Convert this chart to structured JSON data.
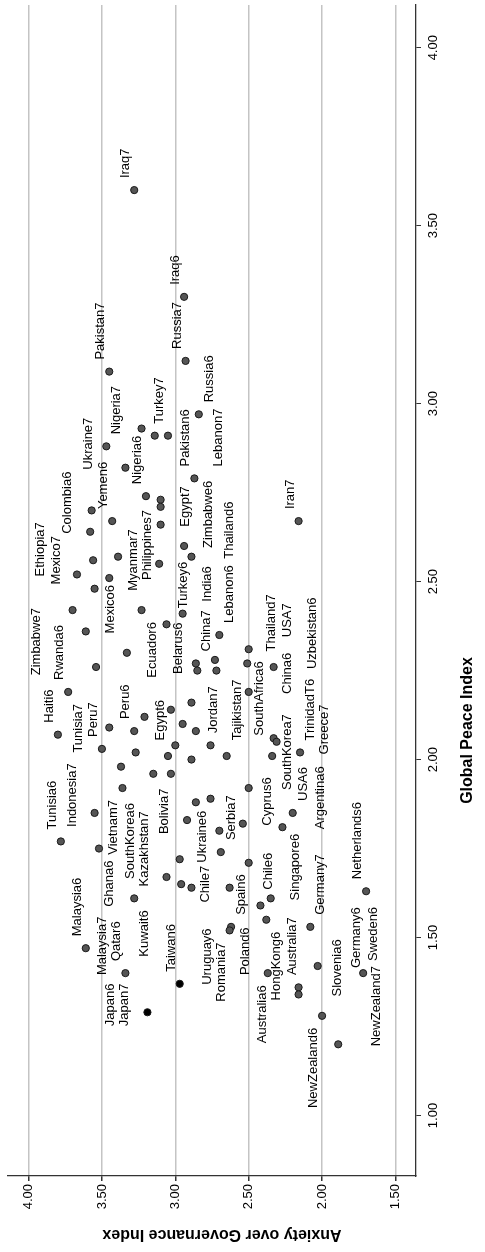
{
  "chart_data": {
    "type": "scatter",
    "xlabel": "Anxiety over Governance Index",
    "ylabel": "Global Peace Index",
    "xlim": [
      4.14,
      1.36
    ],
    "ylim": [
      0.83,
      4.12
    ],
    "xticks": [
      {
        "value": 4,
        "label": "4.00"
      },
      {
        "value": 3.5,
        "label": "3.50"
      },
      {
        "value": 3,
        "label": "3.00"
      },
      {
        "value": 2.5,
        "label": "2.50"
      },
      {
        "value": 2,
        "label": "2.00"
      },
      {
        "value": 1.5,
        "label": "1.50"
      }
    ],
    "yticks": [
      {
        "value": 1,
        "label": "1.00"
      },
      {
        "value": 1.5,
        "label": "1.50"
      },
      {
        "value": 2,
        "label": "2.00"
      },
      {
        "value": 2.5,
        "label": "2.50"
      },
      {
        "value": 3,
        "label": "3.00"
      },
      {
        "value": 3.5,
        "label": "3.50"
      },
      {
        "value": 4,
        "label": "4.00"
      }
    ],
    "grid": "x",
    "marker": "circle",
    "series": [
      {
        "color": "#555555",
        "x": [
          3.28,
          2.94,
          3.45,
          2.93,
          2.84,
          3.23,
          3.14,
          3.05,
          3.47,
          3.34,
          2.87,
          3.57,
          3.43,
          3.2,
          3.1,
          3.1,
          3.58,
          3.1,
          2.16,
          3.67,
          3.56,
          3.39,
          2.94,
          2.89,
          3.55,
          3.45,
          3.7,
          3.23,
          2.95,
          3.11,
          3.61,
          3.06,
          3.33,
          2.7,
          2.5,
          3.54,
          2.86,
          2.85,
          2.73,
          2.72,
          2.51,
          2.33,
          3.73,
          3.8,
          3.45,
          3.21,
          3.28,
          3.03,
          2.89,
          2.5,
          2.95,
          2.86,
          3.5,
          3.0,
          3.05,
          2.33,
          2.31,
          3.37,
          3.27,
          3.15,
          3.03,
          2.89,
          2.65,
          2.34,
          2.15,
          2.76,
          3.36,
          2.5,
          3.55,
          2.86,
          2.76,
          2.92,
          2.7,
          2.54,
          2.27,
          2.2,
          3.78,
          3.52,
          2.97,
          2.69,
          3.06,
          2.96,
          2.89,
          2.63,
          2.5,
          3.61,
          3.28,
          2.35,
          2.42,
          1.7,
          2.62,
          2.63,
          2.38,
          2.08,
          3.34,
          2.37,
          2.03,
          1.72,
          2.16,
          2.16,
          2.0,
          1.89
        ],
        "values": [
          3.6,
          3.3,
          3.09,
          3.12,
          2.97,
          2.93,
          2.91,
          2.91,
          2.88,
          2.82,
          2.79,
          2.7,
          2.67,
          2.74,
          2.73,
          2.71,
          2.64,
          2.66,
          2.67,
          2.52,
          2.56,
          2.57,
          2.6,
          2.57,
          2.48,
          2.51,
          2.42,
          2.42,
          2.41,
          2.55,
          2.36,
          2.38,
          2.3,
          2.35,
          2.31,
          2.26,
          2.27,
          2.25,
          2.28,
          2.25,
          2.27,
          2.26,
          2.19,
          2.07,
          2.09,
          2.12,
          2.08,
          2.14,
          2.16,
          2.19,
          2.1,
          2.08,
          2.03,
          2.04,
          2.01,
          2.06,
          2.05,
          1.98,
          2.02,
          1.96,
          1.96,
          2.0,
          2.01,
          2.01,
          2.02,
          2.04,
          1.92,
          1.92,
          1.85,
          1.88,
          1.89,
          1.83,
          1.8,
          1.82,
          1.81,
          1.85,
          1.77,
          1.75,
          1.72,
          1.74,
          1.67,
          1.65,
          1.64,
          1.64,
          1.71,
          1.47,
          1.61,
          1.61,
          1.59,
          1.63,
          1.53,
          1.52,
          1.55,
          1.53,
          1.4,
          1.4,
          1.42,
          1.4,
          1.36,
          1.34,
          1.28,
          1.2
        ]
      },
      {
        "color": "#000000",
        "x": [
          2.97,
          3.19
        ],
        "values": [
          1.37,
          1.29
        ]
      }
    ],
    "annotations": [
      {
        "text": "Iraq7",
        "x": 3.28,
        "y": 3.6
      },
      {
        "text": "Iraq6",
        "x": 2.94,
        "y": 3.3
      },
      {
        "text": "Pakistan7",
        "x": 3.45,
        "y": 3.09
      },
      {
        "text": "Russia7",
        "x": 2.93,
        "y": 3.12
      },
      {
        "text": "Ukraine7",
        "x": 3.34,
        "y": 2.82
      },
      {
        "text": "Nigeria7",
        "x": 3.47,
        "y": 2.88
      },
      {
        "text": "Turkey7",
        "x": 3.05,
        "y": 2.91
      },
      {
        "text": "Pakistan6",
        "x": 2.87,
        "y": 2.79
      },
      {
        "text": "Russia6",
        "x": 2.84,
        "y": 2.97
      },
      {
        "text": "Nigeria6",
        "x": 3.2,
        "y": 2.74
      },
      {
        "text": "Yemen6",
        "x": 3.43,
        "y": 2.67
      },
      {
        "text": "Zimbabwe6",
        "x": 2.94,
        "y": 2.6
      },
      {
        "text": "Lebanon7",
        "x": 2.87,
        "y": 2.79
      },
      {
        "text": "Colombia6",
        "x": 3.58,
        "y": 2.64
      },
      {
        "text": "Egypt7",
        "x": 3.1,
        "y": 2.66
      },
      {
        "text": "Myanmar7",
        "x": 3.55,
        "y": 2.48
      },
      {
        "text": "Ethiopia7",
        "x": 3.67,
        "y": 2.52
      },
      {
        "text": "Rwanda6",
        "x": 3.73,
        "y": 2.19
      },
      {
        "text": "Zimbabwe7",
        "x": 3.7,
        "y": 2.42
      },
      {
        "text": "Mexico7",
        "x": 3.56,
        "y": 2.56
      },
      {
        "text": "Mexico6",
        "x": 3.61,
        "y": 2.36
      },
      {
        "text": "Philippines7",
        "x": 3.45,
        "y": 2.51
      },
      {
        "text": "Ecuador6",
        "x": 3.23,
        "y": 2.42
      },
      {
        "text": "Turkey6",
        "x": 3.11,
        "y": 2.55
      },
      {
        "text": "China7",
        "x": 2.86,
        "y": 2.27
      },
      {
        "text": "India6",
        "x": 2.95,
        "y": 2.41
      },
      {
        "text": "Belarus6",
        "x": 2.73,
        "y": 2.28
      },
      {
        "text": "Lebanon6",
        "x": 2.7,
        "y": 2.35
      },
      {
        "text": "China6",
        "x": 2.5,
        "y": 2.19
      },
      {
        "text": "Thailand7",
        "x": 2.51,
        "y": 2.27
      },
      {
        "text": "Thailand6",
        "x": 2.89,
        "y": 2.57
      },
      {
        "text": "USA7",
        "x": 2.5,
        "y": 2.31
      },
      {
        "text": "SouthAfrica6",
        "x": 2.5,
        "y": 2.31
      },
      {
        "text": "Uzbekistan6",
        "x": 2.33,
        "y": 2.26
      },
      {
        "text": "Iran7",
        "x": 2.16,
        "y": 2.67
      },
      {
        "text": "Tajikistan7",
        "x": 2.33,
        "y": 2.06
      },
      {
        "text": "Haiti6",
        "x": 3.8,
        "y": 2.07
      },
      {
        "text": "Tunisia7",
        "x": 3.73,
        "y": 2.19
      },
      {
        "text": "Indonesia7",
        "x": 3.55,
        "y": 1.85
      },
      {
        "text": "Tunisia6",
        "x": 3.78,
        "y": 1.77
      },
      {
        "text": "Peru7",
        "x": 3.5,
        "y": 2.03
      },
      {
        "text": "Peru6",
        "x": 3.28,
        "y": 2.08
      },
      {
        "text": "Vietnam7",
        "x": 3.36,
        "y": 1.92
      },
      {
        "text": "Kazakhstan7",
        "x": 3.28,
        "y": 1.61
      },
      {
        "text": "Egypt6",
        "x": 3.27,
        "y": 2.02
      },
      {
        "text": "SouthKorea6",
        "x": 3.06,
        "y": 1.67
      },
      {
        "text": "Jordan7",
        "x": 3.0,
        "y": 2.04
      },
      {
        "text": "Bolivia7",
        "x": 2.92,
        "y": 1.83
      },
      {
        "text": "Serbia7",
        "x": 2.69,
        "y": 1.74
      },
      {
        "text": "Ukraine6",
        "x": 2.76,
        "y": 1.89
      },
      {
        "text": "Cyprus6",
        "x": 2.54,
        "y": 1.82
      },
      {
        "text": "SouthKorea7",
        "x": 2.5,
        "y": 1.92
      },
      {
        "text": "USA6",
        "x": 2.2,
        "y": 1.85
      },
      {
        "text": "TrinidadT6",
        "x": 2.15,
        "y": 2.02
      },
      {
        "text": "Greece7",
        "x": 2.15,
        "y": 2.02
      },
      {
        "text": "Argentina6",
        "x": 2.27,
        "y": 1.81
      },
      {
        "text": "Malaysia6",
        "x": 3.61,
        "y": 1.47
      },
      {
        "text": "Ghana6",
        "x": 3.52,
        "y": 1.75
      },
      {
        "text": "Malaysia7",
        "x": 3.34,
        "y": 1.4
      },
      {
        "text": "Qatar6",
        "x": 3.34,
        "y": 1.4
      },
      {
        "text": "Kuwait6",
        "x": 3.28,
        "y": 1.61
      },
      {
        "text": "Japan7",
        "x": 3.19,
        "y": 1.29
      },
      {
        "text": "Chile7",
        "x": 2.96,
        "y": 1.65
      },
      {
        "text": "Taiwan6",
        "x": 2.97,
        "y": 1.37
      },
      {
        "text": "Romania7",
        "x": 2.63,
        "y": 1.52
      },
      {
        "text": "Spain6",
        "x": 2.62,
        "y": 1.53
      },
      {
        "text": "Uruguay6",
        "x": 2.63,
        "y": 1.52
      },
      {
        "text": "Chile6",
        "x": 2.63,
        "y": 1.64
      },
      {
        "text": "Poland6",
        "x": 2.37,
        "y": 1.4
      },
      {
        "text": "Australia7",
        "x": 2.37,
        "y": 1.4
      },
      {
        "text": "Singapore6",
        "x": 2.35,
        "y": 1.61
      },
      {
        "text": "Slovenia6",
        "x": 2.16,
        "y": 1.34
      },
      {
        "text": "HongKong6",
        "x": 2.38,
        "y": 1.55
      },
      {
        "text": "Australia6",
        "x": 2.16,
        "y": 1.36
      },
      {
        "text": "Germany7",
        "x": 2.08,
        "y": 1.53
      },
      {
        "text": "Germany6",
        "x": 2.03,
        "y": 1.42
      },
      {
        "text": "Netherlands6",
        "x": 1.7,
        "y": 1.63
      },
      {
        "text": "Sweden6",
        "x": 1.72,
        "y": 1.4
      },
      {
        "text": "NewZealand6",
        "x": 2.0,
        "y": 1.28
      },
      {
        "text": "NewZealand7",
        "x": 1.89,
        "y": 1.2
      },
      {
        "text": "Japan6",
        "x": 3.19,
        "y": 1.29
      }
    ]
  }
}
